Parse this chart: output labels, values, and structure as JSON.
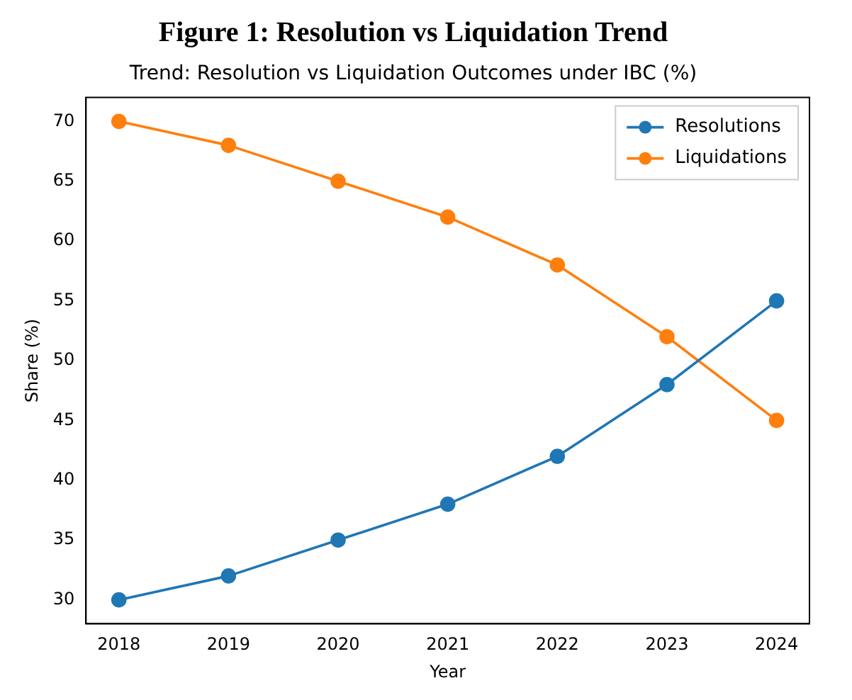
{
  "chart_data": {
    "type": "line",
    "title": "Figure 1: Resolution vs Liquidation Trend",
    "subtitle": "Trend: Resolution vs Liquidation Outcomes under IBC (%)",
    "xlabel": "Year",
    "ylabel": "Share (%)",
    "x": [
      2018,
      2019,
      2020,
      2021,
      2022,
      2023,
      2024
    ],
    "series": [
      {
        "name": "Resolutions",
        "color": "#1f77b4",
        "values": [
          30,
          32,
          35,
          38,
          42,
          48,
          55
        ]
      },
      {
        "name": "Liquidations",
        "color": "#ff7f0e",
        "values": [
          70,
          68,
          65,
          62,
          58,
          52,
          45
        ]
      }
    ],
    "xlim": [
      2017.7,
      2024.3
    ],
    "xticks": [
      2018,
      2019,
      2020,
      2021,
      2022,
      2023,
      2024
    ],
    "ylim": [
      28,
      72
    ],
    "yticks": [
      30,
      35,
      40,
      45,
      50,
      55,
      60,
      65,
      70
    ],
    "grid": false,
    "legend": "top right",
    "marker": "circle",
    "line_style": "solid"
  }
}
